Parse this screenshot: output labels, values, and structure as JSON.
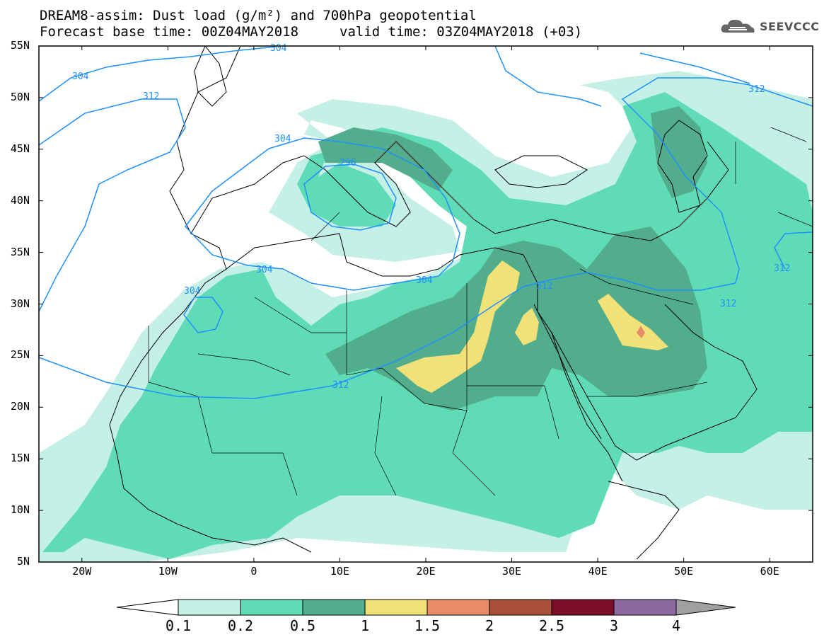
{
  "title": {
    "line1": "DREAM8-assim: Dust load (g/m²) and 700hPa geopotential",
    "line2_left": "Forecast base time: 00Z04MAY2018",
    "line2_right": "valid time: 03Z04MAY2018 (+03)"
  },
  "logo": {
    "text": "SEEVCCC",
    "icon": "cloud-logo-icon"
  },
  "axes": {
    "y_ticks": [
      "55N",
      "50N",
      "45N",
      "40N",
      "35N",
      "30N",
      "25N",
      "20N",
      "15N",
      "10N",
      "5N"
    ],
    "x_ticks": [
      "20W",
      "10W",
      "0",
      "10E",
      "20E",
      "30E",
      "40E",
      "50E",
      "60E"
    ],
    "lon_range": [
      -25,
      65
    ],
    "lat_range": [
      5,
      55
    ]
  },
  "contours": {
    "labels": [
      "304",
      "304",
      "312",
      "304",
      "296",
      "304",
      "304",
      "304",
      "312",
      "312",
      "312",
      "312",
      "312"
    ]
  },
  "colorbar": {
    "labels": [
      "0.1",
      "0.2",
      "0.5",
      "1",
      "1.5",
      "2",
      "2.5",
      "3",
      "4"
    ],
    "colors": [
      "#c5f0e6",
      "#5fdcb5",
      "#51ad8b",
      "#f0e278",
      "#e88c68",
      "#a8503a",
      "#7a0e2a",
      "#8a6aa0"
    ],
    "low_color": "#ffffff",
    "high_color": "#a0a0a0"
  }
}
